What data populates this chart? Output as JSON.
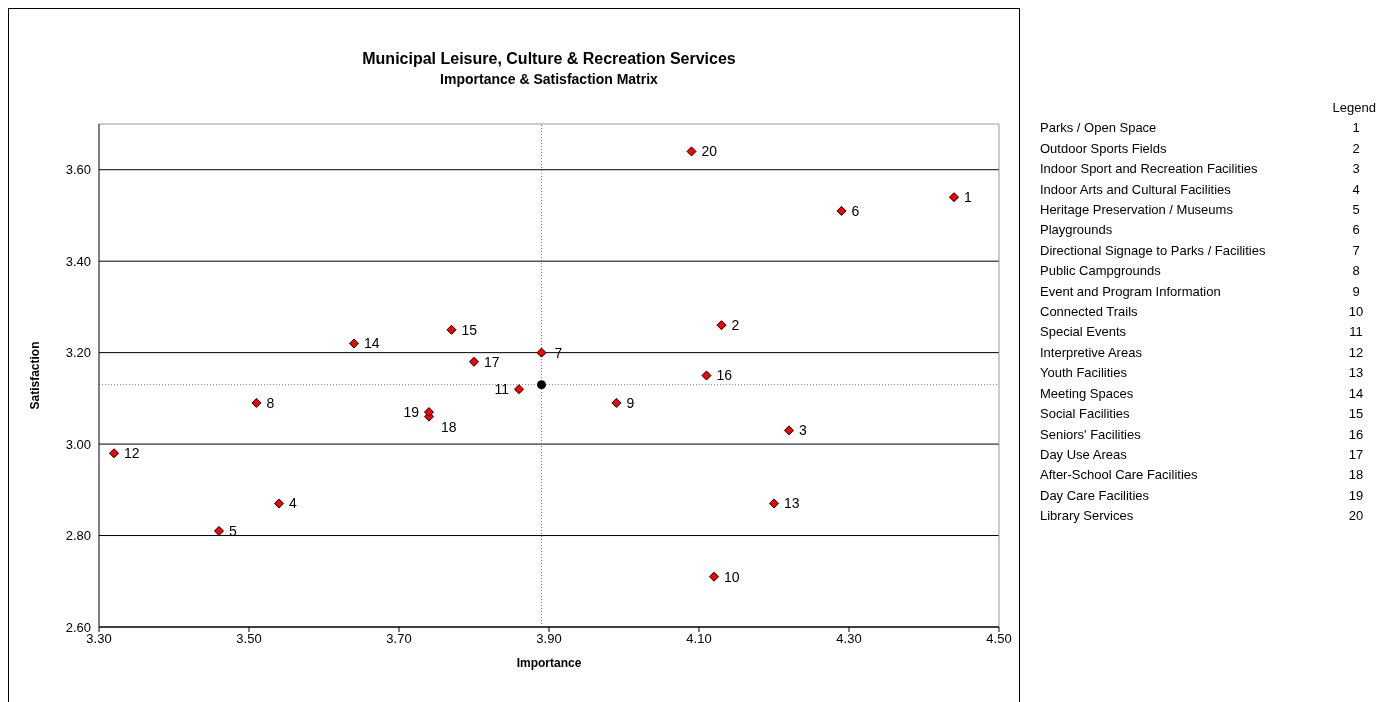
{
  "chart_data": {
    "type": "scatter",
    "title": "Municipal Leisure, Culture & Recreation Services",
    "subtitle": "Importance & Satisfaction Matrix",
    "xlabel": "Importance",
    "ylabel": "Satisfaction",
    "legend_title": "Legend",
    "xlim": [
      3.3,
      4.5
    ],
    "xticks": [
      {
        "value": 3.3,
        "label": "3.30"
      },
      {
        "value": 3.5,
        "label": "3.50"
      },
      {
        "value": 3.7,
        "label": "3.70"
      },
      {
        "value": 3.9,
        "label": "3.90"
      },
      {
        "value": 4.1,
        "label": "4.10"
      },
      {
        "value": 4.3,
        "label": "4.30"
      },
      {
        "value": 4.5,
        "label": "4.50"
      }
    ],
    "ylim": [
      2.6,
      3.7
    ],
    "yticks": [
      {
        "value": 2.6,
        "label": "2.60"
      },
      {
        "value": 2.8,
        "label": "2.80"
      },
      {
        "value": 3.0,
        "label": "3.00"
      },
      {
        "value": 3.2,
        "label": "3.20"
      },
      {
        "value": 3.4,
        "label": "3.40"
      },
      {
        "value": 3.6,
        "label": "3.60"
      }
    ],
    "grid": "y",
    "series": [
      {
        "color": "#ff0000",
        "marker": "diamond",
        "x": [
          4.44,
          4.13,
          4.22,
          3.54,
          3.46,
          4.29,
          3.89,
          3.51,
          3.99,
          4.12,
          3.86,
          3.32,
          4.2,
          3.64,
          3.77,
          4.11,
          3.8,
          3.74,
          3.74,
          4.09
        ],
        "values": [
          3.54,
          3.26,
          3.03,
          2.87,
          2.81,
          3.51,
          3.2,
          3.09,
          3.09,
          2.71,
          3.12,
          2.98,
          2.87,
          3.22,
          3.25,
          3.15,
          3.18,
          3.06,
          3.07,
          3.64
        ]
      },
      {
        "color": "#000000",
        "marker": "circle",
        "x": [
          3.89
        ],
        "values": [
          3.13
        ]
      }
    ],
    "ref_lines": [
      {
        "axis": "x",
        "value": 3.89,
        "color": "#808080",
        "line_style": "dotted"
      },
      {
        "axis": "y",
        "value": 3.13,
        "color": "#808080",
        "line_style": "dotted"
      }
    ],
    "annotations": [
      {
        "text": "1",
        "x": 4.44,
        "y": 3.54
      },
      {
        "text": "2",
        "x": 4.13,
        "y": 3.26
      },
      {
        "text": "3",
        "x": 4.22,
        "y": 3.03
      },
      {
        "text": "4",
        "x": 3.54,
        "y": 2.87
      },
      {
        "text": "5",
        "x": 3.46,
        "y": 2.81
      },
      {
        "text": "6",
        "x": 4.29,
        "y": 3.51
      },
      {
        "text": "7",
        "x": 3.89,
        "y": 3.2
      },
      {
        "text": "8",
        "x": 3.51,
        "y": 3.09
      },
      {
        "text": "9",
        "x": 3.99,
        "y": 3.09
      },
      {
        "text": "10",
        "x": 4.12,
        "y": 2.71
      },
      {
        "text": "11",
        "x": 3.86,
        "y": 3.12
      },
      {
        "text": "12",
        "x": 3.32,
        "y": 2.98
      },
      {
        "text": "13",
        "x": 4.2,
        "y": 2.87
      },
      {
        "text": "14",
        "x": 3.64,
        "y": 3.22
      },
      {
        "text": "15",
        "x": 3.77,
        "y": 3.25
      },
      {
        "text": "16",
        "x": 4.11,
        "y": 3.15
      },
      {
        "text": "17",
        "x": 3.8,
        "y": 3.18
      },
      {
        "text": "18",
        "x": 3.74,
        "y": 3.06
      },
      {
        "text": "19",
        "x": 3.74,
        "y": 3.07
      },
      {
        "text": "20",
        "x": 4.09,
        "y": 3.64
      },
      "Parks / Open Space",
      "Outdoor Sports Fields",
      "Indoor Sport and Recreation Facilities",
      "Indoor Arts and Cultural Facilities",
      "Heritage Preservation / Museums",
      "Playgrounds",
      "Directional Signage to Parks / Facilities",
      "Public Campgrounds",
      "Event and Program Information",
      "Connected Trails",
      "Special Events",
      "Interpretive Areas",
      "Youth Facilities",
      "Meeting Spaces",
      "Social Facilities",
      "Seniors' Facilities",
      "Day Use Areas",
      "After-School Care Facilities",
      "Day Care Facilities",
      "Library Services"
    ]
  }
}
